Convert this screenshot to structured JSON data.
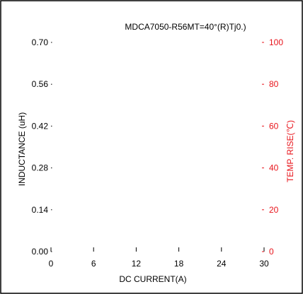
{
  "chart_data": {
    "type": "line",
    "title": "MDCA7050-R56MT=40°(R)Tj0.)",
    "xlabel": "DC CURRENT(A)",
    "ylabel_left": "INDUCTANCE (uH)",
    "ylabel_right": "TEMP. RISE(℃)",
    "x_ticks": [
      "0",
      "6",
      "12",
      "18",
      "24",
      "30"
    ],
    "x_tick_values": [
      0,
      6,
      12,
      18,
      24,
      30
    ],
    "y_left_ticks": [
      "0.00",
      "0.14",
      "0.28",
      "0.42",
      "0.56",
      "0.70"
    ],
    "y_left_tick_values": [
      0,
      0.14,
      0.28,
      0.42,
      0.56,
      0.7
    ],
    "y_right_ticks": [
      "0",
      "20",
      "40",
      "60",
      "80",
      "100"
    ],
    "y_right_tick_values": [
      0,
      20,
      40,
      60,
      80,
      100
    ],
    "xlim": [
      0,
      30
    ],
    "ylim_left": [
      0,
      0.7
    ],
    "ylim_right": [
      0,
      100
    ],
    "grid": false,
    "series": []
  },
  "colors": {
    "frame": "#000000",
    "text": "#000000",
    "right_axis": "#e8141b"
  }
}
